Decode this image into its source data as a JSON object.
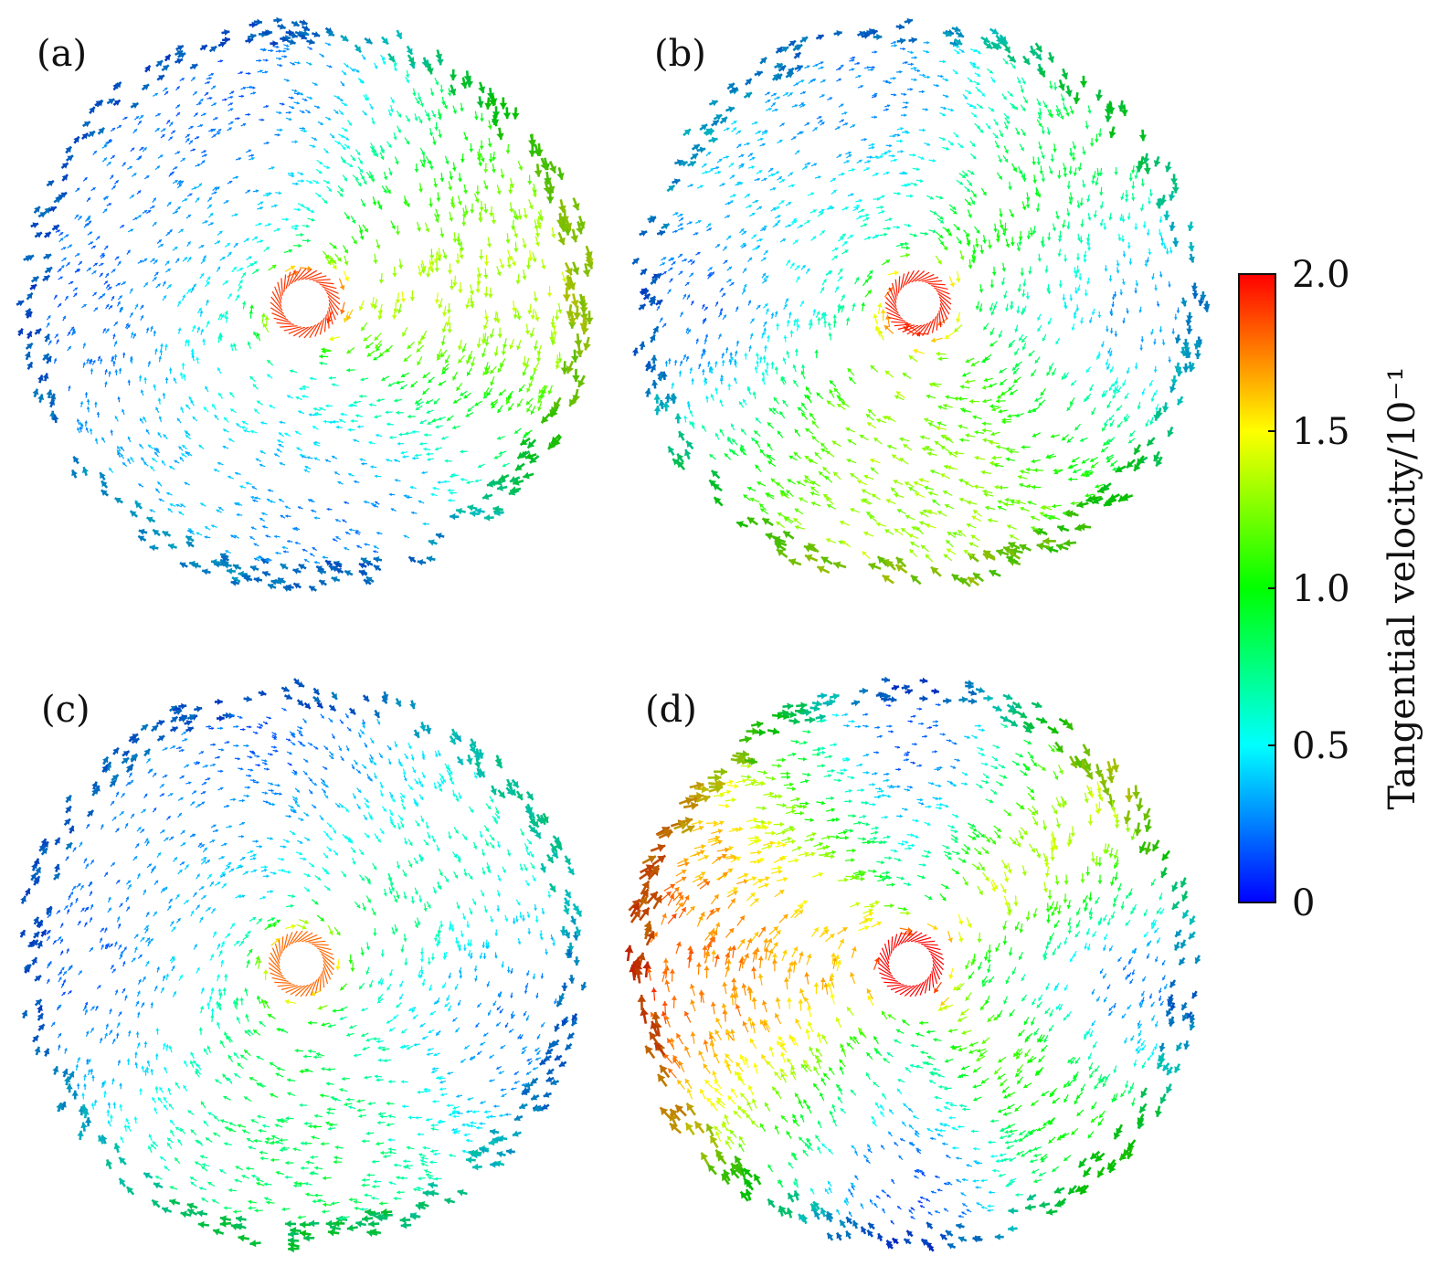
{
  "chart_data": [
    {
      "type": "vector-field",
      "panel_label": "(a)",
      "vortex_center": "center",
      "seed": 11,
      "hot_sectors": [
        {
          "angle_deg": 10,
          "width_deg": 60,
          "level": 1.7
        },
        {
          "angle_deg": 160,
          "width_deg": 30,
          "level": 1.3
        },
        {
          "angle_deg": 300,
          "width_deg": 40,
          "level": 1.6
        }
      ],
      "cold_sectors": [
        {
          "angle_deg": 180,
          "width_deg": 60,
          "level": 0.2
        },
        {
          "angle_deg": 80,
          "width_deg": 40,
          "level": 0.25
        },
        {
          "angle_deg": 250,
          "width_deg": 45,
          "level": 0.2
        }
      ],
      "core_level": 1.9
    },
    {
      "type": "vector-field",
      "panel_label": "(b)",
      "vortex_center": "center",
      "seed": 23,
      "hot_sectors": [
        {
          "angle_deg": 330,
          "width_deg": 70,
          "level": 1.7
        },
        {
          "angle_deg": 140,
          "width_deg": 50,
          "level": 1.6
        }
      ],
      "cold_sectors": [
        {
          "angle_deg": 180,
          "width_deg": 35,
          "level": 0.2
        },
        {
          "angle_deg": 0,
          "width_deg": 30,
          "level": 0.3
        },
        {
          "angle_deg": 255,
          "width_deg": 40,
          "level": 0.25
        }
      ],
      "core_level": 1.95
    },
    {
      "type": "vector-field",
      "panel_label": "(c)",
      "vortex_center": "center",
      "seed": 37,
      "hot_sectors": [
        {
          "angle_deg": 320,
          "width_deg": 60,
          "level": 1.4
        },
        {
          "angle_deg": 150,
          "width_deg": 40,
          "level": 1.3
        }
      ],
      "cold_sectors": [
        {
          "angle_deg": 180,
          "width_deg": 50,
          "level": 0.2
        },
        {
          "angle_deg": 15,
          "width_deg": 35,
          "level": 0.25
        },
        {
          "angle_deg": 260,
          "width_deg": 50,
          "level": 0.2
        }
      ],
      "core_level": 1.8
    },
    {
      "type": "vector-field",
      "panel_label": "(d)",
      "vortex_center": "center",
      "seed": 53,
      "hot_sectors": [
        {
          "angle_deg": 150,
          "width_deg": 80,
          "level": 1.95
        },
        {
          "angle_deg": 320,
          "width_deg": 70,
          "level": 1.95
        },
        {
          "angle_deg": 30,
          "width_deg": 40,
          "level": 1.9
        }
      ],
      "cold_sectors": [
        {
          "angle_deg": 90,
          "width_deg": 30,
          "level": 0.15
        },
        {
          "angle_deg": 270,
          "width_deg": 25,
          "level": 0.15
        },
        {
          "angle_deg": 5,
          "width_deg": 25,
          "level": 0.25
        }
      ],
      "core_level": 2.0
    }
  ],
  "colorbar": {
    "title": "Tangential velocity/10⁻¹",
    "range": [
      0,
      2.0
    ],
    "ticks": [
      {
        "value": 2.0,
        "label": "2.0"
      },
      {
        "value": 1.5,
        "label": "1.5"
      },
      {
        "value": 1.0,
        "label": "1.0"
      },
      {
        "value": 0.5,
        "label": "0.5"
      },
      {
        "value": 0,
        "label": "0"
      }
    ],
    "colormap": [
      "#0000ff",
      "#00ffff",
      "#00ff00",
      "#ffff00",
      "#ff0000"
    ]
  }
}
